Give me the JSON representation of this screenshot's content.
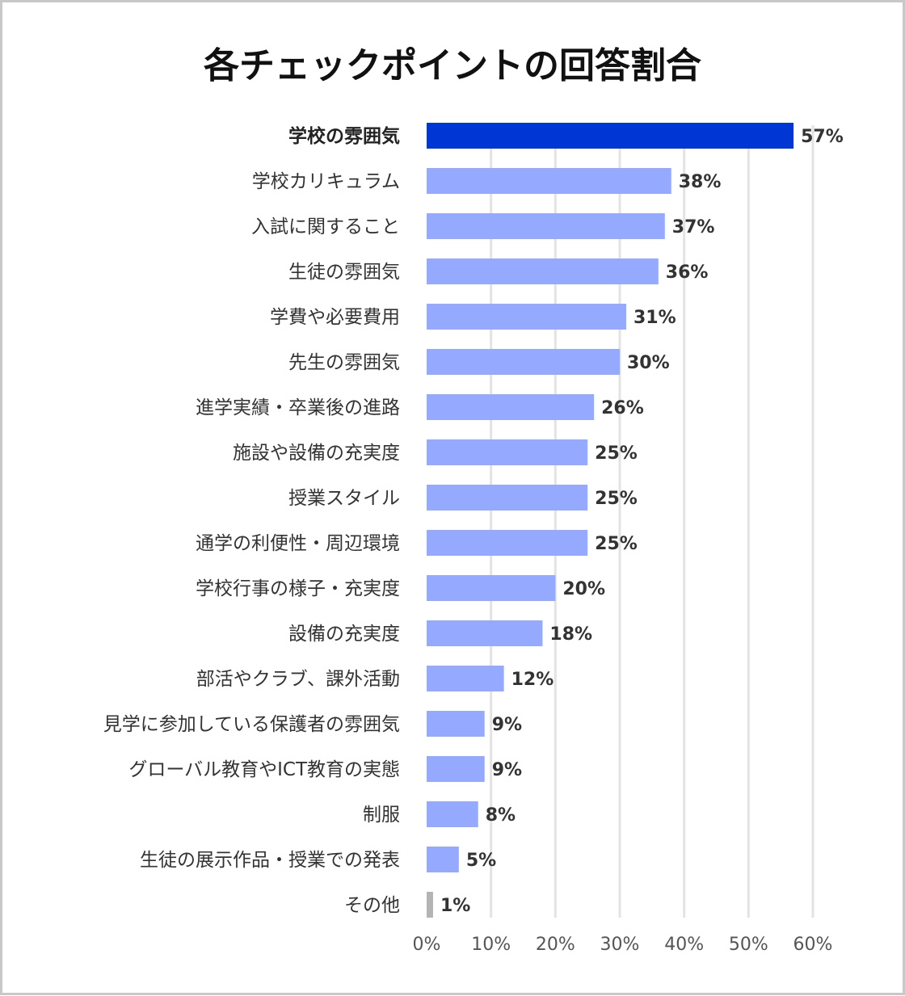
{
  "chart_data": {
    "type": "bar",
    "orientation": "horizontal",
    "title": "各チェックポイントの回答割合",
    "categories": [
      "学校の雰囲気",
      "学校カリキュラム",
      "入試に関すること",
      "生徒の雰囲気",
      "学費や必要費用",
      "先生の雰囲気",
      "進学実績・卒業後の進路",
      "施設や設備の充実度",
      "授業スタイル",
      "通学の利便性・周辺環境",
      "学校行事の様子・充実度",
      "設備の充実度",
      "部活やクラブ、課外活動",
      "見学に参加している保護者の雰囲気",
      "グローバル教育やICT教育の実態",
      "制服",
      "生徒の展示作品・授業での発表",
      "その他"
    ],
    "values": [
      57,
      38,
      37,
      36,
      31,
      30,
      26,
      25,
      25,
      25,
      20,
      18,
      12,
      9,
      9,
      8,
      5,
      1
    ],
    "value_labels": [
      "57%",
      "38%",
      "37%",
      "36%",
      "31%",
      "30%",
      "26%",
      "25%",
      "25%",
      "25%",
      "20%",
      "18%",
      "12%",
      "9%",
      "9%",
      "8%",
      "5%",
      "1%"
    ],
    "x_ticks": [
      0,
      10,
      20,
      30,
      40,
      50,
      60
    ],
    "x_tick_labels": [
      "0%",
      "10%",
      "20%",
      "30%",
      "40%",
      "50%",
      "60%"
    ],
    "xlim": [
      0,
      60
    ],
    "xlabel": "",
    "ylabel": "",
    "grid": true,
    "highlight_index": 0,
    "other_index": 17,
    "colors": {
      "highlight": "#0036d3",
      "default": "#94a9ff",
      "other": "#b4b4b4",
      "grid": "#e3e3e3"
    }
  }
}
